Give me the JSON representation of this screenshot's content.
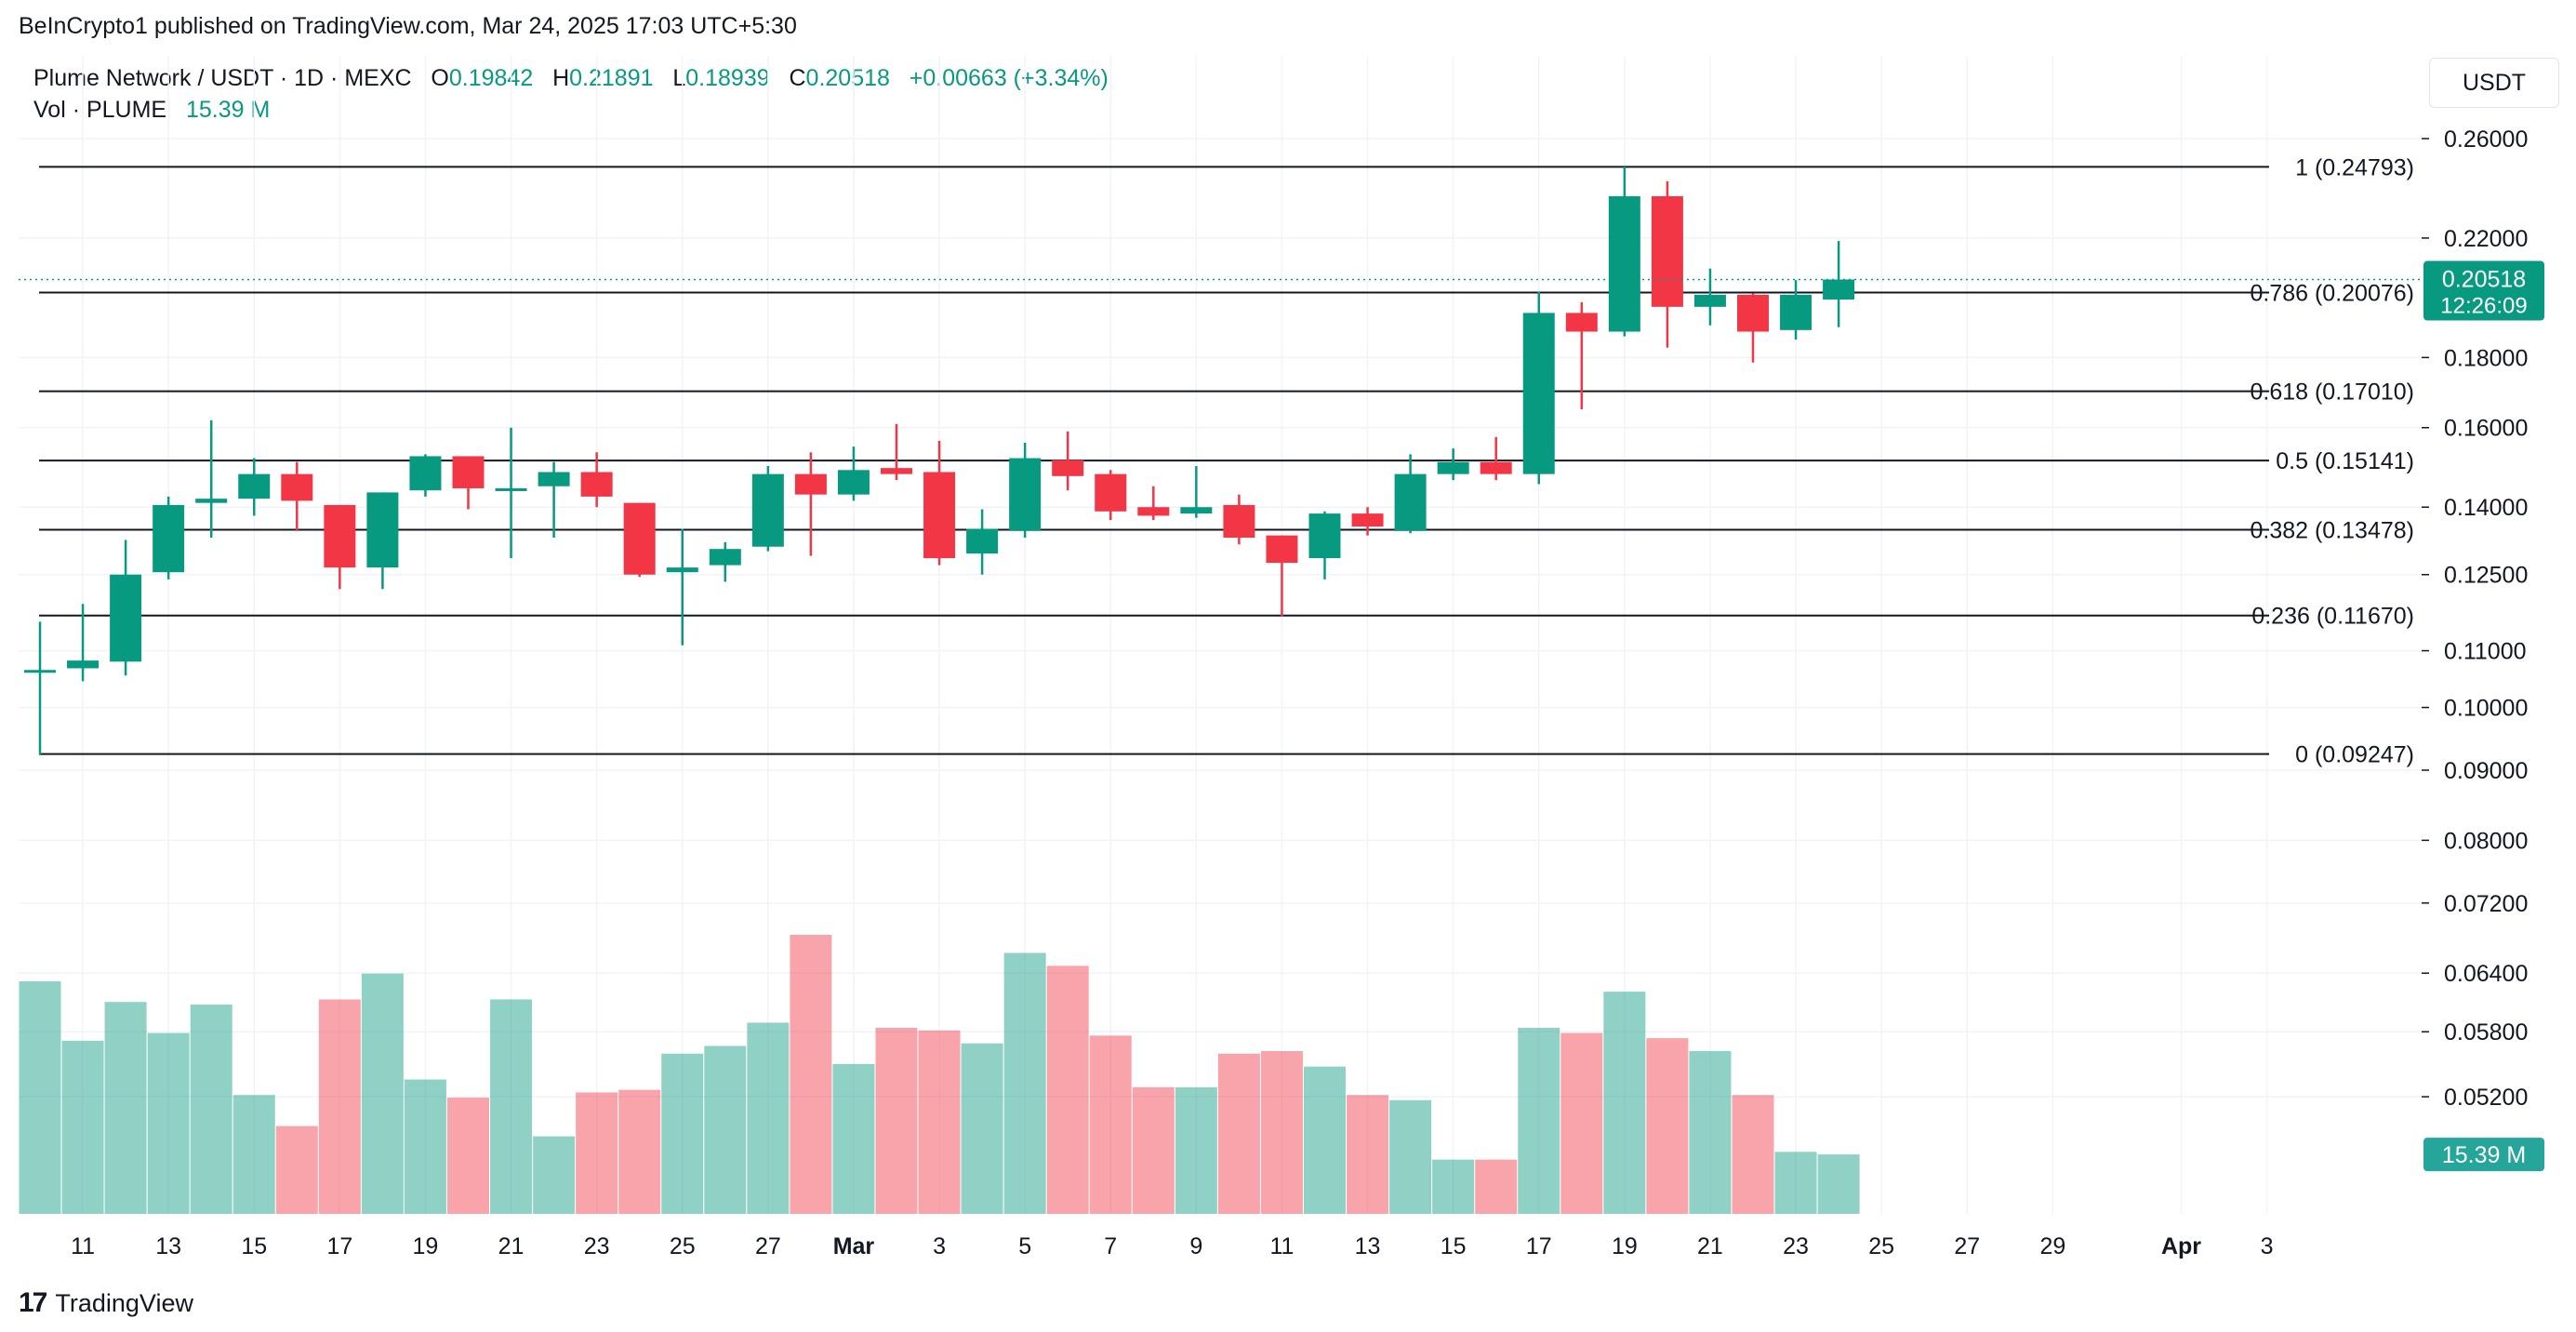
{
  "header": {
    "caption": "BeInCrypto1 published on TradingView.com, Mar 24, 2025 17:03 UTC+5:30",
    "symbol": "Plume Network / USDT · 1D · MEXC",
    "o_label": "O",
    "o_value": "0.19842",
    "h_label": "H",
    "h_value": "0.21891",
    "l_label": "L",
    "l_value": "0.18939",
    "c_label": "C",
    "c_value": "0.20518",
    "change": "+0.00663 (+3.34%)",
    "vol_label": "Vol · PLUME",
    "vol_value": "15.39 M"
  },
  "unit": "USDT",
  "brand": {
    "logo": "17",
    "name": "TradingView"
  },
  "chart_data": {
    "type": "candlestick",
    "price_axis": {
      "scale": "log",
      "ticks": [
        "0.26000",
        "0.22000",
        "0.18000",
        "0.16000",
        "0.14000",
        "0.12500",
        "0.11000",
        "0.10000",
        "0.09000",
        "0.08000",
        "0.07200",
        "0.06400",
        "0.05800",
        "0.05200"
      ],
      "tick_values": [
        0.26,
        0.22,
        0.18,
        0.16,
        0.14,
        0.125,
        0.11,
        0.1,
        0.09,
        0.08,
        0.072,
        0.064,
        0.058,
        0.052
      ]
    },
    "time_axis": {
      "ticks": [
        "11",
        "13",
        "15",
        "17",
        "19",
        "21",
        "23",
        "25",
        "27",
        "Mar",
        "3",
        "5",
        "7",
        "9",
        "11",
        "13",
        "15",
        "17",
        "19",
        "21",
        "23",
        "25",
        "27",
        "29",
        "Apr",
        "3"
      ],
      "tick_days": [
        1,
        3,
        5,
        7,
        9,
        11,
        13,
        15,
        17,
        19,
        21,
        23,
        25,
        27,
        29,
        31,
        33,
        35,
        37,
        39,
        41,
        43,
        45,
        47,
        50,
        52
      ]
    },
    "current_price": {
      "value": 0.20518,
      "label": "0.20518",
      "countdown": "12:26:09"
    },
    "current_volume": {
      "label": "15.39 M"
    },
    "fib_levels": [
      {
        "ratio": "1",
        "price": 0.24793,
        "label": "1 (0.24793)"
      },
      {
        "ratio": "0.786",
        "price": 0.20076,
        "label": "0.786 (0.20076)"
      },
      {
        "ratio": "0.618",
        "price": 0.1701,
        "label": "0.618 (0.17010)"
      },
      {
        "ratio": "0.5",
        "price": 0.15141,
        "label": "0.5 (0.15141)"
      },
      {
        "ratio": "0.382",
        "price": 0.13478,
        "label": "0.382 (0.13478)"
      },
      {
        "ratio": "0.236",
        "price": 0.1167,
        "label": "0.236 (0.11670)"
      },
      {
        "ratio": "0",
        "price": 0.09247,
        "label": "0 (0.09247)"
      }
    ],
    "candles": [
      {
        "d": 0,
        "o": 0.1062,
        "h": 0.1155,
        "l": 0.0924,
        "c": 0.1065,
        "v": 0.9
      },
      {
        "d": 1,
        "o": 0.1068,
        "h": 0.119,
        "l": 0.1045,
        "c": 0.1082,
        "v": 0.67
      },
      {
        "d": 2,
        "o": 0.108,
        "h": 0.1325,
        "l": 0.1055,
        "c": 0.125,
        "v": 0.82
      },
      {
        "d": 3,
        "o": 0.1255,
        "h": 0.1425,
        "l": 0.124,
        "c": 0.1405,
        "v": 0.7
      },
      {
        "d": 4,
        "o": 0.141,
        "h": 0.162,
        "l": 0.133,
        "c": 0.142,
        "v": 0.81
      },
      {
        "d": 5,
        "o": 0.142,
        "h": 0.152,
        "l": 0.138,
        "c": 0.148,
        "v": 0.46
      },
      {
        "d": 6,
        "o": 0.148,
        "h": 0.151,
        "l": 0.1345,
        "c": 0.1415,
        "v": 0.34
      },
      {
        "d": 7,
        "o": 0.1405,
        "h": 0.1405,
        "l": 0.122,
        "c": 0.1265,
        "v": 0.83
      },
      {
        "d": 8,
        "o": 0.1265,
        "h": 0.1435,
        "l": 0.122,
        "c": 0.1435,
        "v": 0.93
      },
      {
        "d": 9,
        "o": 0.144,
        "h": 0.153,
        "l": 0.1425,
        "c": 0.1525,
        "v": 0.52
      },
      {
        "d": 10,
        "o": 0.1525,
        "h": 0.1525,
        "l": 0.1395,
        "c": 0.1445,
        "v": 0.45
      },
      {
        "d": 11,
        "o": 0.1445,
        "h": 0.16,
        "l": 0.1285,
        "c": 0.1445,
        "v": 0.83
      },
      {
        "d": 12,
        "o": 0.145,
        "h": 0.151,
        "l": 0.133,
        "c": 0.1485,
        "v": 0.3
      },
      {
        "d": 13,
        "o": 0.1485,
        "h": 0.1535,
        "l": 0.14,
        "c": 0.1425,
        "v": 0.47
      },
      {
        "d": 14,
        "o": 0.141,
        "h": 0.141,
        "l": 0.1245,
        "c": 0.125,
        "v": 0.48
      },
      {
        "d": 15,
        "o": 0.1255,
        "h": 0.135,
        "l": 0.111,
        "c": 0.1265,
        "v": 0.62
      },
      {
        "d": 16,
        "o": 0.127,
        "h": 0.132,
        "l": 0.1235,
        "c": 0.1305,
        "v": 0.65
      },
      {
        "d": 17,
        "o": 0.131,
        "h": 0.15,
        "l": 0.13,
        "c": 0.148,
        "v": 0.74
      },
      {
        "d": 18,
        "o": 0.148,
        "h": 0.1535,
        "l": 0.129,
        "c": 0.143,
        "v": 1.08
      },
      {
        "d": 19,
        "o": 0.143,
        "h": 0.155,
        "l": 0.1415,
        "c": 0.149,
        "v": 0.58
      },
      {
        "d": 20,
        "o": 0.1495,
        "h": 0.161,
        "l": 0.1465,
        "c": 0.148,
        "v": 0.72
      },
      {
        "d": 21,
        "o": 0.1485,
        "h": 0.1565,
        "l": 0.127,
        "c": 0.1285,
        "v": 0.71
      },
      {
        "d": 22,
        "o": 0.1295,
        "h": 0.1395,
        "l": 0.125,
        "c": 0.135,
        "v": 0.66
      },
      {
        "d": 23,
        "o": 0.1345,
        "h": 0.156,
        "l": 0.133,
        "c": 0.152,
        "v": 1.01
      },
      {
        "d": 24,
        "o": 0.1515,
        "h": 0.159,
        "l": 0.144,
        "c": 0.1475,
        "v": 0.96
      },
      {
        "d": 25,
        "o": 0.148,
        "h": 0.149,
        "l": 0.137,
        "c": 0.139,
        "v": 0.69
      },
      {
        "d": 26,
        "o": 0.14,
        "h": 0.145,
        "l": 0.137,
        "c": 0.138,
        "v": 0.49
      },
      {
        "d": 27,
        "o": 0.1385,
        "h": 0.15,
        "l": 0.1375,
        "c": 0.14,
        "v": 0.49
      },
      {
        "d": 28,
        "o": 0.1405,
        "h": 0.143,
        "l": 0.1315,
        "c": 0.133,
        "v": 0.62
      },
      {
        "d": 29,
        "o": 0.1335,
        "h": 0.1335,
        "l": 0.1165,
        "c": 0.1275,
        "v": 0.63
      },
      {
        "d": 30,
        "o": 0.1285,
        "h": 0.139,
        "l": 0.124,
        "c": 0.1385,
        "v": 0.57
      },
      {
        "d": 31,
        "o": 0.1385,
        "h": 0.14,
        "l": 0.1335,
        "c": 0.1355,
        "v": 0.46
      },
      {
        "d": 32,
        "o": 0.1345,
        "h": 0.153,
        "l": 0.134,
        "c": 0.148,
        "v": 0.44
      },
      {
        "d": 33,
        "o": 0.148,
        "h": 0.1545,
        "l": 0.1465,
        "c": 0.151,
        "v": 0.21
      },
      {
        "d": 34,
        "o": 0.151,
        "h": 0.1575,
        "l": 0.1465,
        "c": 0.148,
        "v": 0.21
      },
      {
        "d": 35,
        "o": 0.148,
        "h": 0.201,
        "l": 0.1455,
        "c": 0.194,
        "v": 0.72
      },
      {
        "d": 36,
        "o": 0.194,
        "h": 0.1975,
        "l": 0.165,
        "c": 0.188,
        "v": 0.7
      },
      {
        "d": 37,
        "o": 0.188,
        "h": 0.248,
        "l": 0.1865,
        "c": 0.236,
        "v": 0.86
      },
      {
        "d": 38,
        "o": 0.236,
        "h": 0.242,
        "l": 0.183,
        "c": 0.196,
        "v": 0.68
      },
      {
        "d": 39,
        "o": 0.196,
        "h": 0.209,
        "l": 0.19,
        "c": 0.2,
        "v": 0.63
      },
      {
        "d": 40,
        "o": 0.2,
        "h": 0.2005,
        "l": 0.1785,
        "c": 0.188,
        "v": 0.46
      },
      {
        "d": 41,
        "o": 0.1885,
        "h": 0.205,
        "l": 0.1855,
        "c": 0.2,
        "v": 0.24
      },
      {
        "d": 42,
        "o": 0.1984,
        "h": 0.2189,
        "l": 0.1894,
        "c": 0.2052,
        "v": 0.23
      }
    ]
  }
}
